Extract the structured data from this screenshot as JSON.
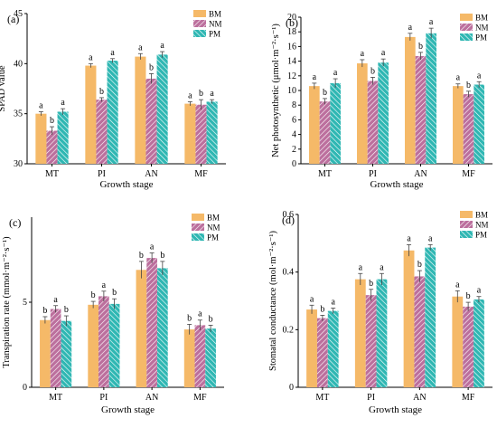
{
  "colors": {
    "BM": "#f5b968",
    "NM": "#bc6f9d",
    "PM": "#2fb7b3"
  },
  "chart_data": [
    {
      "type": "bar",
      "panel_label": "(a)",
      "categories": [
        "MT",
        "PI",
        "AN",
        "MF"
      ],
      "series": [
        {
          "name": "BM",
          "values": [
            35.0,
            39.8,
            40.7,
            36.0
          ],
          "errors": [
            0.2,
            0.2,
            0.3,
            0.2
          ],
          "letters": [
            "a",
            "a",
            "a",
            "a"
          ]
        },
        {
          "name": "NM",
          "values": [
            33.3,
            36.4,
            38.5,
            35.9
          ],
          "errors": [
            0.4,
            0.2,
            0.5,
            0.5
          ],
          "letters": [
            "b",
            "b",
            "b",
            "b"
          ]
        },
        {
          "name": "PM",
          "values": [
            35.2,
            40.3,
            40.9,
            36.2
          ],
          "errors": [
            0.3,
            0.2,
            0.3,
            0.2
          ],
          "letters": [
            "a",
            "a",
            "a",
            "a"
          ]
        }
      ],
      "xlabel": "Growth stage",
      "ylabel": "SPAD value",
      "ylim": [
        30,
        45
      ],
      "yticks": [
        30,
        35,
        40,
        45
      ],
      "legend": "top-right"
    },
    {
      "type": "bar",
      "panel_label": "(b)",
      "categories": [
        "MT",
        "PI",
        "AN",
        "MF"
      ],
      "series": [
        {
          "name": "BM",
          "values": [
            10.6,
            13.7,
            17.3,
            10.6
          ],
          "errors": [
            0.4,
            0.5,
            0.5,
            0.3
          ],
          "letters": [
            "a",
            "a",
            "a",
            "a"
          ]
        },
        {
          "name": "NM",
          "values": [
            8.5,
            11.3,
            14.7,
            9.5
          ],
          "errors": [
            0.4,
            0.5,
            0.5,
            0.4
          ],
          "letters": [
            "b",
            "b",
            "b",
            "b"
          ]
        },
        {
          "name": "PM",
          "values": [
            11.0,
            13.8,
            17.8,
            10.8
          ],
          "errors": [
            0.6,
            0.5,
            0.7,
            0.4
          ],
          "letters": [
            "a",
            "a",
            "a",
            "a"
          ]
        }
      ],
      "xlabel": "Growth stage",
      "ylabel": "Net photosynthetic (μmol·m⁻²·s⁻¹)",
      "ylim": [
        0,
        20
      ],
      "yticks": [
        0,
        2,
        4,
        6,
        8,
        10,
        12,
        14,
        16,
        18,
        20
      ],
      "legend": "top-right"
    },
    {
      "type": "bar",
      "panel_label": "(c)",
      "categories": [
        "MT",
        "PI",
        "AN",
        "MF"
      ],
      "series": [
        {
          "name": "BM",
          "values": [
            3.95,
            4.85,
            6.9,
            3.4
          ],
          "errors": [
            0.2,
            0.2,
            0.5,
            0.3
          ],
          "letters": [
            "b",
            "b",
            "b",
            "b"
          ]
        },
        {
          "name": "NM",
          "values": [
            4.6,
            5.35,
            7.6,
            3.65
          ],
          "errors": [
            0.2,
            0.3,
            0.3,
            0.3
          ],
          "letters": [
            "a",
            "a",
            "a",
            "a"
          ]
        },
        {
          "name": "PM",
          "values": [
            3.9,
            4.9,
            7.0,
            3.45
          ],
          "errors": [
            0.3,
            0.3,
            0.4,
            0.2
          ],
          "letters": [
            "b",
            "b",
            "b",
            "b"
          ]
        }
      ],
      "xlabel": "Growth stage",
      "ylabel": "Transpiration rate (mmol·m⁻²·s⁻¹)",
      "ylim": [
        0,
        10
      ],
      "yticks": [
        0,
        5
      ],
      "legend": "top-right"
    },
    {
      "type": "bar",
      "panel_label": "(d)",
      "categories": [
        "MT",
        "PI",
        "AN",
        "MF"
      ],
      "series": [
        {
          "name": "BM",
          "values": [
            0.27,
            0.375,
            0.475,
            0.315
          ],
          "errors": [
            0.015,
            0.02,
            0.02,
            0.02
          ],
          "letters": [
            "a",
            "a",
            "a",
            "a"
          ]
        },
        {
          "name": "NM",
          "values": [
            0.24,
            0.32,
            0.385,
            0.28
          ],
          "errors": [
            0.01,
            0.02,
            0.02,
            0.015
          ],
          "letters": [
            "b",
            "b",
            "b",
            "b"
          ]
        },
        {
          "name": "PM",
          "values": [
            0.265,
            0.375,
            0.485,
            0.305
          ],
          "errors": [
            0.01,
            0.02,
            0.01,
            0.01
          ],
          "letters": [
            "a",
            "a",
            "a",
            "a"
          ]
        }
      ],
      "xlabel": "Growth stage",
      "ylabel": "Stomatal conductance (mol·m⁻²·s⁻¹)",
      "ylim": [
        0,
        0.6
      ],
      "yticks": [
        0.0,
        0.2,
        0.4,
        0.6
      ],
      "legend": "top-right"
    }
  ]
}
